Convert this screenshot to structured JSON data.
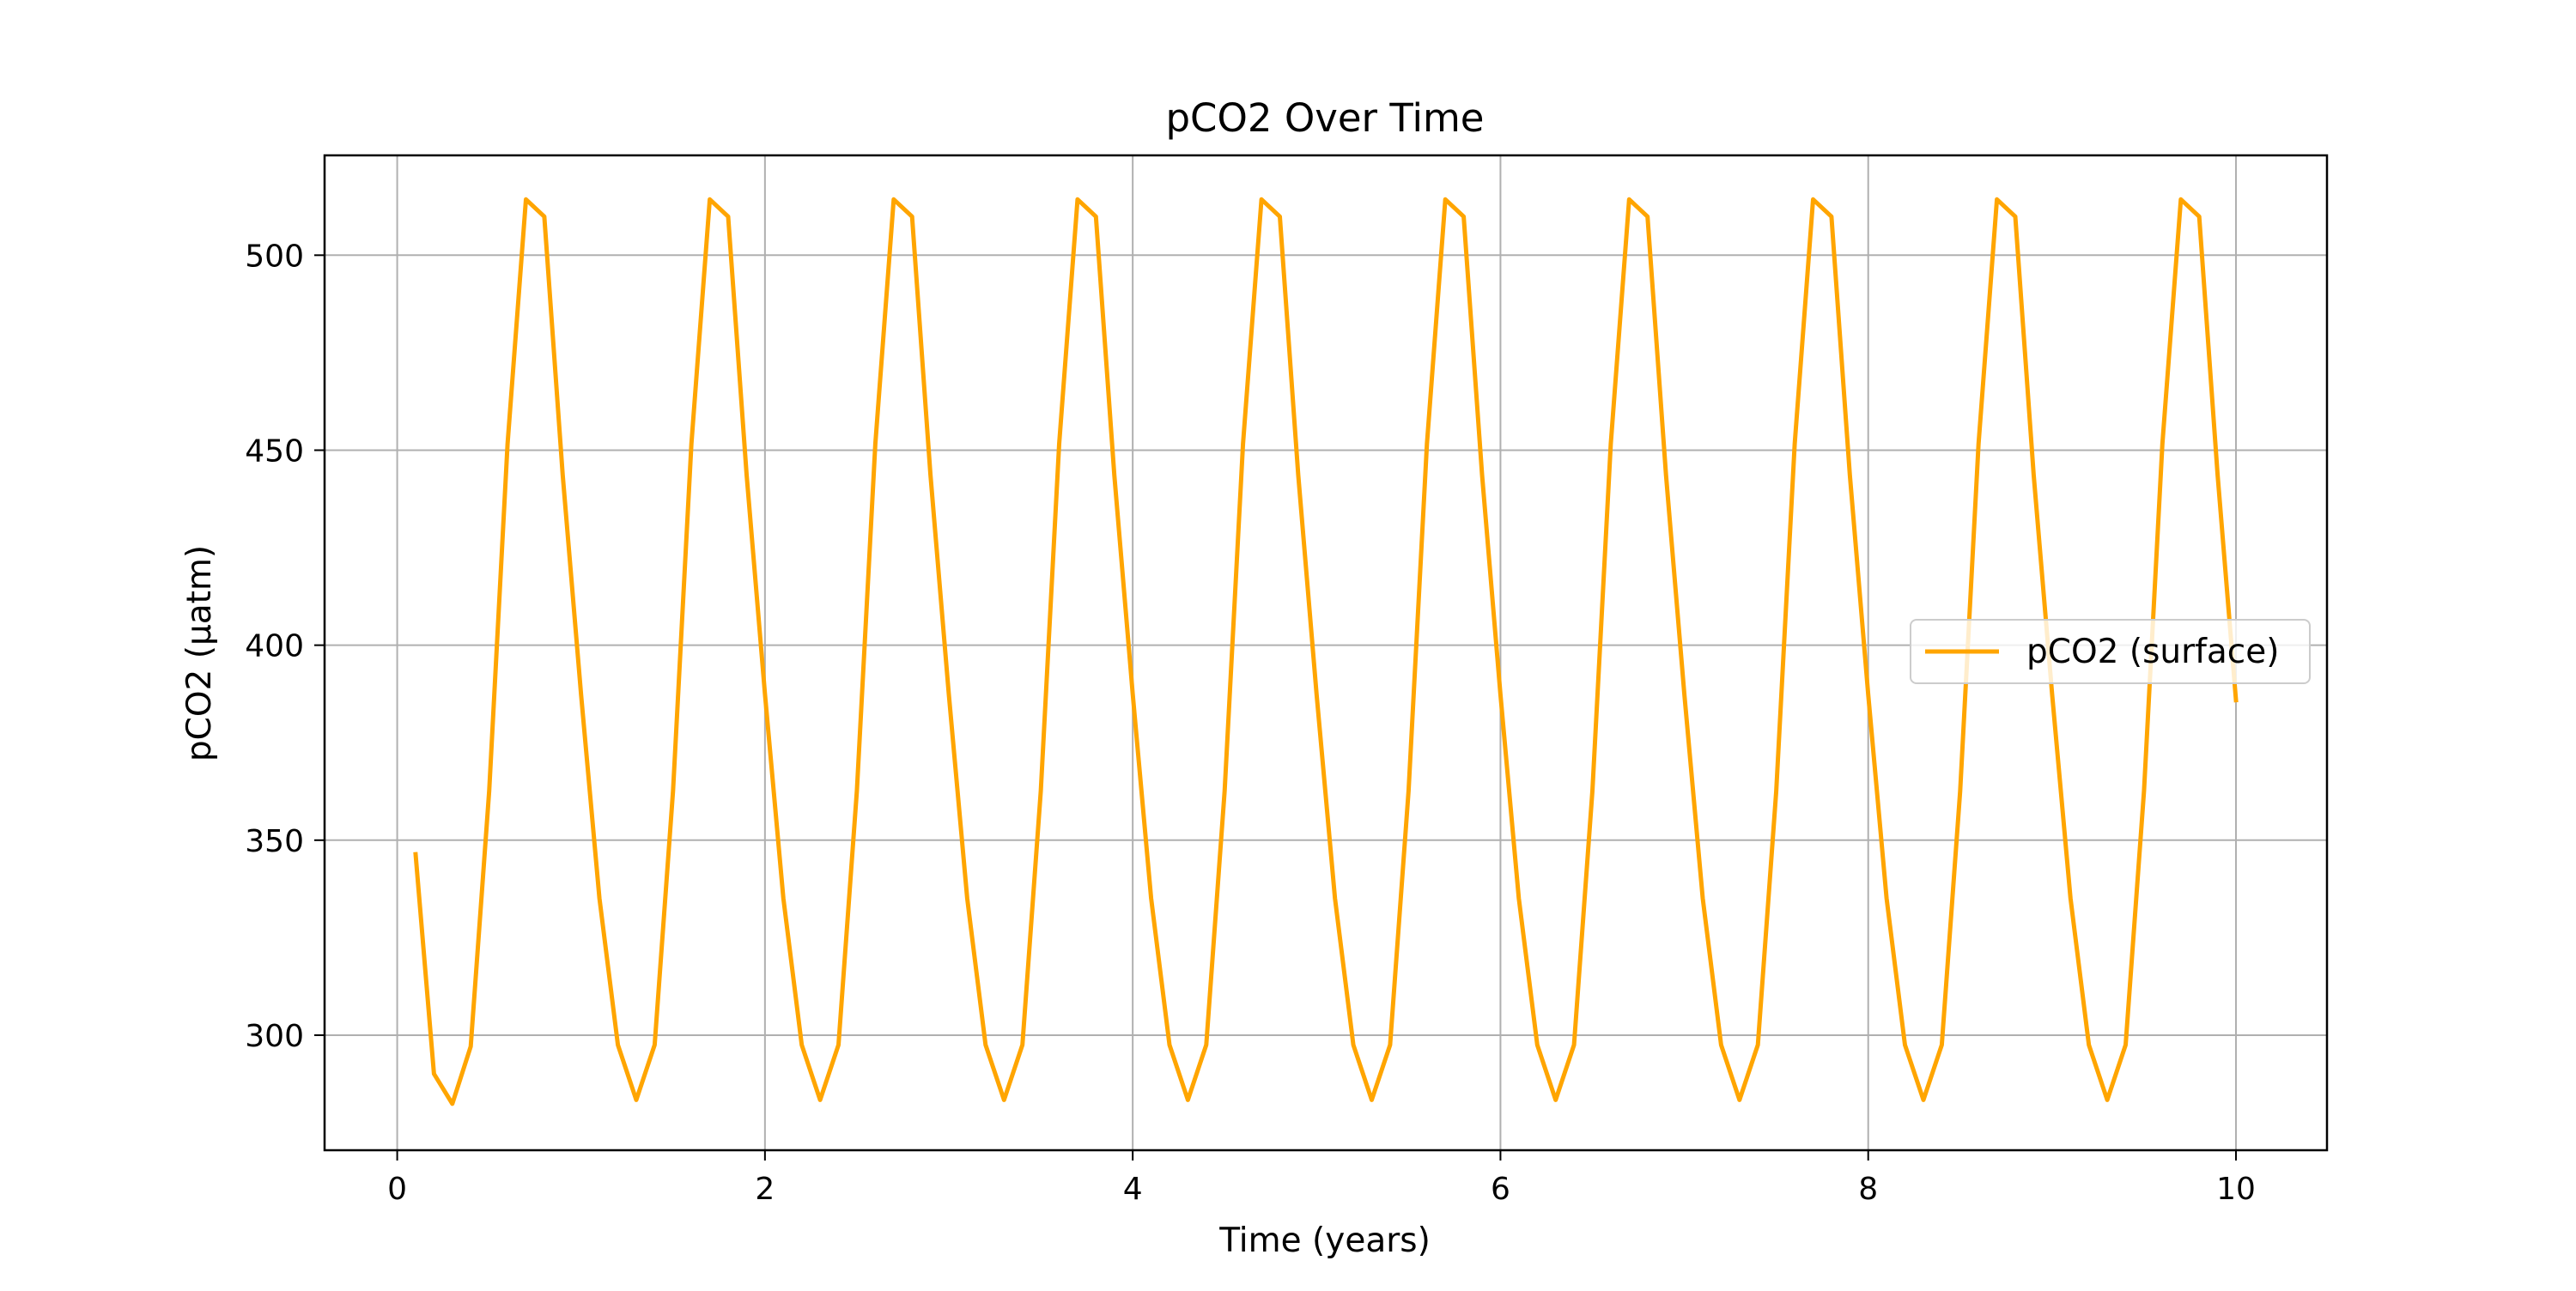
{
  "chart_data": {
    "type": "line",
    "title": "pCO2 Over Time",
    "xlabel": "Time (years)",
    "ylabel": "pCO2 (µatm)",
    "xlim": [
      -0.395,
      10.495
    ],
    "ylim": [
      270.5,
      525.6
    ],
    "xticks": [
      0,
      2,
      4,
      6,
      8,
      10
    ],
    "yticks": [
      300,
      350,
      400,
      450,
      500
    ],
    "grid": true,
    "legend": {
      "position": "center-right"
    },
    "colors": {
      "series": "#ffa500",
      "grid": "#b0b0b0",
      "axes": "#000000"
    },
    "series": [
      {
        "name": "pCO2 (surface)",
        "x": [
          0.1,
          0.2,
          0.3,
          0.4,
          0.5,
          0.6,
          0.7,
          0.8,
          0.9,
          1.0,
          1.1,
          1.2,
          1.3,
          1.4,
          1.5,
          1.6,
          1.7,
          1.8,
          1.9,
          2.0,
          2.1,
          2.2,
          2.3,
          2.4,
          2.5,
          2.6,
          2.7,
          2.8,
          2.9,
          3.0,
          3.1,
          3.2,
          3.3,
          3.4,
          3.5,
          3.6,
          3.7,
          3.8,
          3.9,
          4.0,
          4.1,
          4.2,
          4.3,
          4.4,
          4.5,
          4.6,
          4.7,
          4.8,
          4.9,
          5.0,
          5.1,
          5.2,
          5.3,
          5.4,
          5.5,
          5.6,
          5.7,
          5.8,
          5.9,
          6.0,
          6.1,
          6.2,
          6.3,
          6.4,
          6.5,
          6.6,
          6.7,
          6.8,
          6.9,
          7.0,
          7.1,
          7.2,
          7.3,
          7.4,
          7.5,
          7.6,
          7.7,
          7.8,
          7.9,
          8.0,
          8.1,
          8.2,
          8.3,
          8.4,
          8.5,
          8.6,
          8.7,
          8.8,
          8.9,
          9.0,
          9.1,
          9.2,
          9.3,
          9.4,
          9.5,
          9.6,
          9.7,
          9.8,
          9.9,
          10.0
        ],
        "values": [
          346.4,
          290.1,
          282.4,
          297.1,
          362.6,
          451.6,
          514.3,
          509.9,
          443.7,
          387.4,
          335.1,
          297.5,
          283.4,
          297.5,
          362.6,
          451.6,
          514.3,
          509.9,
          443.7,
          387.4,
          335.1,
          297.5,
          283.4,
          297.5,
          362.6,
          451.6,
          514.3,
          509.9,
          443.7,
          387.4,
          335.1,
          297.5,
          283.4,
          297.5,
          362.6,
          451.6,
          514.3,
          509.9,
          443.7,
          387.4,
          335.1,
          297.5,
          283.4,
          297.5,
          362.6,
          451.6,
          514.3,
          509.9,
          443.7,
          387.4,
          335.1,
          297.5,
          283.4,
          297.5,
          362.6,
          451.6,
          514.3,
          509.9,
          443.7,
          387.4,
          335.1,
          297.5,
          283.4,
          297.5,
          362.6,
          451.6,
          514.3,
          509.9,
          443.7,
          387.4,
          335.1,
          297.5,
          283.4,
          297.5,
          362.6,
          451.6,
          514.3,
          509.9,
          443.7,
          387.4,
          335.1,
          297.5,
          283.4,
          297.5,
          362.6,
          451.6,
          514.3,
          509.9,
          443.7,
          387.4,
          335.1,
          297.5,
          283.4,
          297.5,
          362.6,
          451.6,
          514.3,
          509.9,
          443.7,
          385.9
        ]
      }
    ]
  }
}
